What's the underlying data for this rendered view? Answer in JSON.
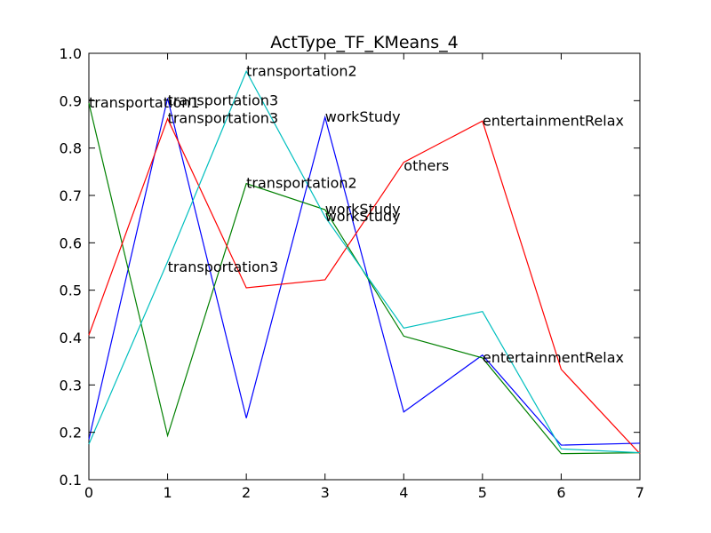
{
  "chart_data": {
    "type": "line",
    "title": "ActType_TF_KMeans_4",
    "xlabel": "",
    "ylabel": "",
    "xlim": [
      0,
      7
    ],
    "ylim": [
      0.1,
      1.0
    ],
    "x": [
      0,
      1,
      2,
      3,
      4,
      5,
      6,
      7
    ],
    "xticks": [
      "0",
      "1",
      "2",
      "3",
      "4",
      "5",
      "6",
      "7"
    ],
    "yticks": [
      "0.1",
      "0.2",
      "0.3",
      "0.4",
      "0.5",
      "0.6",
      "0.7",
      "0.8",
      "0.9",
      "1.0"
    ],
    "grid": false,
    "series": [
      {
        "color": "#0000ff",
        "values": [
          0.185,
          0.905,
          0.23,
          0.865,
          0.243,
          0.363,
          0.173,
          0.177
        ]
      },
      {
        "color": "#008000",
        "values": [
          0.895,
          0.193,
          0.725,
          0.67,
          0.403,
          0.357,
          0.155,
          0.157
        ]
      },
      {
        "color": "#ff0000",
        "values": [
          0.405,
          0.862,
          0.505,
          0.522,
          0.77,
          0.857,
          0.333,
          0.155
        ]
      },
      {
        "color": "#00bfbf",
        "values": [
          0.175,
          0.56,
          0.962,
          0.655,
          0.42,
          0.455,
          0.165,
          0.157
        ]
      }
    ],
    "annotations": [
      {
        "text": "transportation1",
        "x": 0,
        "y": 0.895
      },
      {
        "text": "transportation3",
        "x": 1,
        "y": 0.9
      },
      {
        "text": "transportation3",
        "x": 1,
        "y": 0.862
      },
      {
        "text": "transportation3",
        "x": 1,
        "y": 0.548
      },
      {
        "text": "transportation2",
        "x": 2,
        "y": 0.962
      },
      {
        "text": "transportation2",
        "x": 2,
        "y": 0.725
      },
      {
        "text": "workStudy",
        "x": 3,
        "y": 0.865
      },
      {
        "text": "workStudy",
        "x": 3,
        "y": 0.67
      },
      {
        "text": "workStudy",
        "x": 3,
        "y": 0.655
      },
      {
        "text": "others",
        "x": 4,
        "y": 0.762
      },
      {
        "text": "entertainmentRelax",
        "x": 5,
        "y": 0.857
      },
      {
        "text": "entertainmentRelax",
        "x": 5,
        "y": 0.357
      }
    ]
  }
}
